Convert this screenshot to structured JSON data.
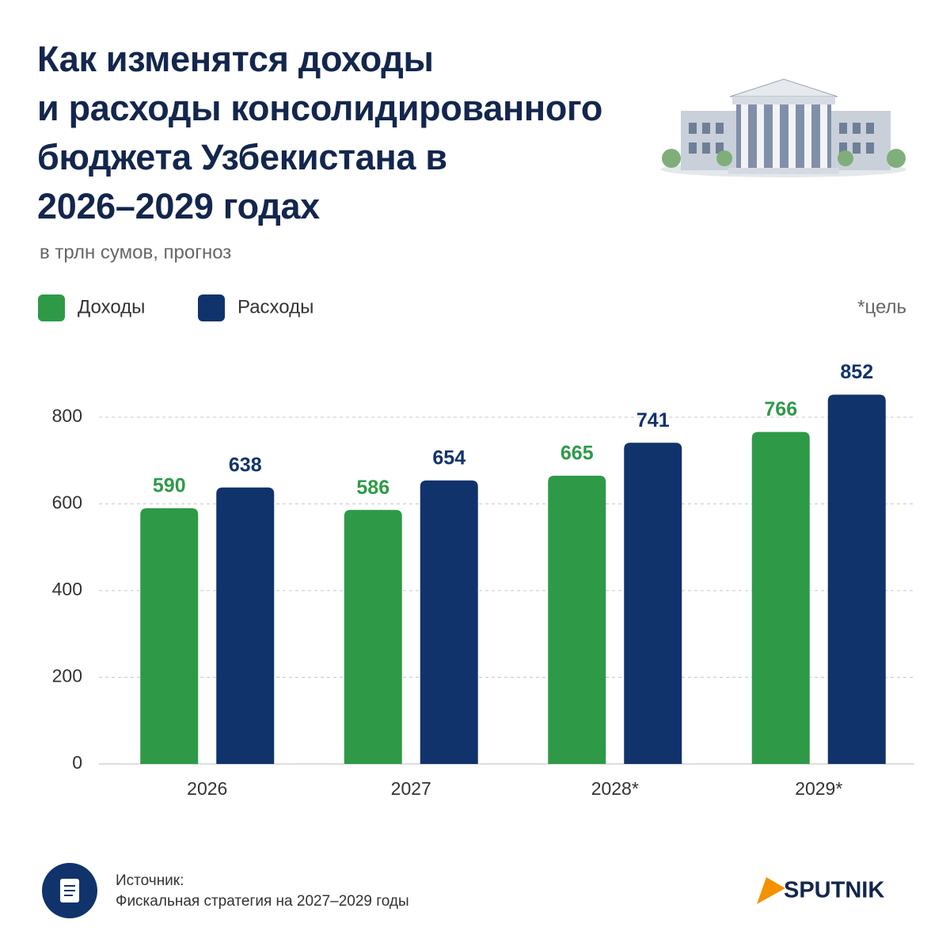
{
  "chart_data": {
    "type": "bar",
    "title": "Как изменятся доходы\nи расходы консолидированного\nбюджета Узбекистана в\n2026–2029 годах",
    "subtitle": "в трлн сумов, прогноз",
    "note": "*цель",
    "categories": [
      "2026",
      "2027",
      "2028*",
      "2029*"
    ],
    "series": [
      {
        "name": "Доходы",
        "color": "#2e9a47",
        "values": [
          590,
          586,
          665,
          766
        ]
      },
      {
        "name": "Расходы",
        "color": "#11336b",
        "values": [
          638,
          654,
          741,
          852
        ]
      }
    ],
    "ylim": [
      0,
      880
    ],
    "yticks": [
      0,
      200,
      400,
      600,
      800
    ],
    "grid": true,
    "source_label": "Источник:",
    "source": "Фискальная стратегия на 2027–2029 годы",
    "brand": "SPUTNIK"
  }
}
